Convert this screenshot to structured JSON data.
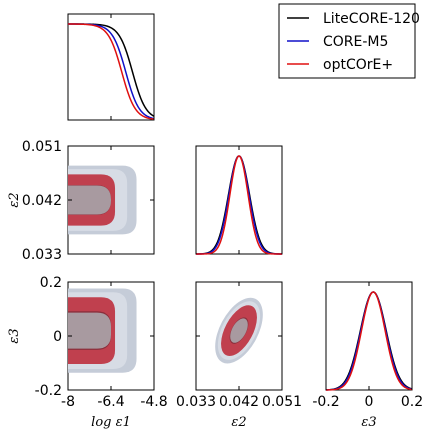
{
  "chart_data": {
    "type": "corner",
    "parameters": [
      {
        "id": "log_e1",
        "label": "log ε1",
        "range": [
          -8,
          -4.8
        ],
        "ticks": [
          "-8",
          "-6.4",
          "-4.8"
        ],
        "tick_values": [
          -8,
          -6.4,
          -4.8
        ]
      },
      {
        "id": "e2",
        "label": "ε2",
        "range": [
          0.033,
          0.051
        ],
        "ticks": [
          "0.033",
          "0.042",
          "0.051"
        ],
        "tick_values": [
          0.033,
          0.042,
          0.051
        ]
      },
      {
        "id": "e3",
        "label": "ε3",
        "range": [
          -0.2,
          0.2
        ],
        "ticks": [
          "-0.2",
          "0",
          "0.2"
        ],
        "tick_values": [
          -0.2,
          0,
          0.2
        ]
      }
    ],
    "series": [
      {
        "name": "LiteCORE-120",
        "color": "#000000"
      },
      {
        "name": "CORE-M5",
        "color": "#1010c8"
      },
      {
        "name": "optCOrE+",
        "color": "#e01010"
      }
    ],
    "marginals": {
      "log_e1": {
        "kind": "upper_limit_step",
        "plateau_until": [
          -6.95,
          -7.2,
          -7.3
        ],
        "falloff_center": [
          -5.6,
          -5.85,
          -6.0
        ],
        "falloff_width": [
          0.25,
          0.25,
          0.25
        ]
      },
      "e2": {
        "mean": [
          0.042,
          0.042,
          0.042
        ],
        "sigma": [
          0.0022,
          0.0021,
          0.0019
        ]
      },
      "e3": {
        "mean": [
          0.02,
          0.02,
          0.02
        ],
        "sigma": [
          0.06,
          0.058,
          0.055
        ]
      }
    },
    "contour_colors": {
      "outer_light": "#c5ccd8",
      "red_outer": "#c0404e",
      "red_inner": "#8a2f3c",
      "mean_region": "#a89aa0"
    },
    "legend_position": "top-right",
    "grid": false
  }
}
